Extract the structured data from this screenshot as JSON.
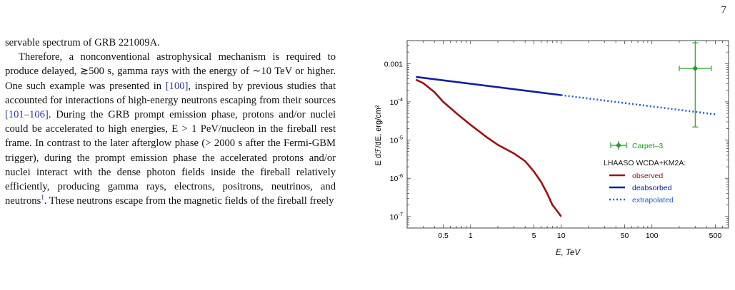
{
  "page": {
    "number": "7"
  },
  "text": {
    "line1": "servable spectrum of GRB 221009A.",
    "p2_a": "Therefore, a nonconventional astrophysical mechanism is required to produce delayed, ≳500 s, gamma rays with the energy of ∼10 TeV or higher. One such example was presented in ",
    "cite1": "[100]",
    "p2_b": ", inspired by previous studies that accounted for interactions of high-energy neutrons escaping from their sources ",
    "cite2": "[101–106]",
    "p2_c": ". During the GRB prompt emission phase, protons and/or nuclei could be accelerated to high energies, E > 1 PeV/nucleon in the fireball rest frame. In contrast to the later afterglow phase (> 2000 s after the Fermi-GBM trigger), during the prompt emission phase the accelerated protons and/or nuclei interact with the dense photon fields inside the fireball relatively efficiently, producing gamma rays, electrons, positrons, neutrinos, and neutrons",
    "footnote_mark": "1",
    "p2_d": ". These neutrons escape from the magnetic fields of the fireball freely"
  },
  "chart_data": {
    "type": "line",
    "xlabel": "E, TeV",
    "ylabel": "E dℱ/dE, erg/cm²",
    "xscale": "log",
    "yscale": "log",
    "xlim": [
      0.2,
      700
    ],
    "ylim": [
      5e-08,
      0.004
    ],
    "x_ticks": [
      {
        "v": 0.5,
        "label": "0.5"
      },
      {
        "v": 1,
        "label": "1"
      },
      {
        "v": 5,
        "label": "5"
      },
      {
        "v": 10,
        "label": "10"
      },
      {
        "v": 50,
        "label": "50"
      },
      {
        "v": 100,
        "label": "100"
      },
      {
        "v": 500,
        "label": "500"
      }
    ],
    "y_ticks": [
      {
        "v": 0.001,
        "label": "0.001",
        "sup": ""
      },
      {
        "v": 0.0001,
        "label": "10",
        "sup": "-4"
      },
      {
        "v": 1e-05,
        "label": "10",
        "sup": "-5"
      },
      {
        "v": 1e-06,
        "label": "10",
        "sup": "-6"
      },
      {
        "v": 1e-07,
        "label": "10",
        "sup": "-7"
      }
    ],
    "legend_header": "LHAASO WCDA+KM2A:",
    "series": [
      {
        "name": "observed",
        "color": "#a01010",
        "style": "solid",
        "x": [
          0.25,
          0.3,
          0.4,
          0.5,
          0.7,
          1,
          1.5,
          2,
          3,
          4,
          5,
          6,
          7,
          8,
          9,
          10
        ],
        "y": [
          0.00038,
          0.00031,
          0.00018,
          0.0001,
          5e-05,
          2.5e-05,
          1.2e-05,
          7.5e-06,
          4.5e-06,
          2.8e-06,
          1.5e-06,
          8e-07,
          4e-07,
          2e-07,
          1.4e-07,
          1e-07
        ]
      },
      {
        "name": "deabsorbed",
        "color": "#10209a",
        "style": "solid",
        "x": [
          0.25,
          10
        ],
        "y": [
          0.00045,
          0.00015
        ]
      },
      {
        "name": "extrapolated",
        "color": "#1f5fd0",
        "style": "dotted",
        "x": [
          10,
          500
        ],
        "y": [
          0.00015,
          4.7e-05
        ]
      }
    ],
    "points": [
      {
        "name": "Carpet–3",
        "color": "#20a020",
        "x": 300,
        "y": 0.00075,
        "xerr": [
          200,
          450
        ],
        "yerr": [
          2.2e-05,
          0.0035
        ]
      }
    ],
    "legend_placement": "bottom-right"
  }
}
